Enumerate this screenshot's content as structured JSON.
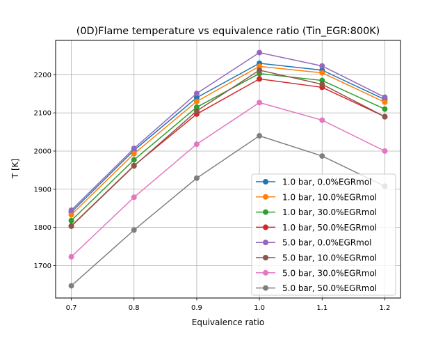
{
  "chart_data": {
    "type": "line",
    "title": "(0D)Flame temperature vs equivalence ratio (Tin_EGR:800K)",
    "xlabel": "Equivalence ratio",
    "ylabel": "T [K]",
    "xlim": [
      0.675,
      1.225
    ],
    "ylim": [
      1615,
      2290
    ],
    "x": [
      0.7,
      0.8,
      0.9,
      1.0,
      1.1,
      1.2
    ],
    "x_ticks": [
      0.7,
      0.8,
      0.9,
      1.0,
      1.1,
      1.2
    ],
    "x_tick_labels": [
      "0.7",
      "0.8",
      "0.9",
      "1.0",
      "1.1",
      "1.2"
    ],
    "y_ticks": [
      1700,
      1800,
      1900,
      2000,
      2100,
      2200
    ],
    "y_tick_labels": [
      "1700",
      "1800",
      "1900",
      "2000",
      "2100",
      "2200"
    ],
    "grid": true,
    "legend_position": "lower-right",
    "series": [
      {
        "name": "1.0 bar, 0.0%EGRmol",
        "color": "#1f77b4",
        "values": [
          1840,
          2002,
          2140,
          2230,
          2212,
          2135
        ]
      },
      {
        "name": "1.0 bar, 10.0%EGRmol",
        "color": "#ff7f0e",
        "values": [
          1833,
          1993,
          2130,
          2222,
          2205,
          2128
        ]
      },
      {
        "name": "1.0 bar, 30.0%EGRmol",
        "color": "#2ca02c",
        "values": [
          1818,
          1977,
          2115,
          2203,
          2185,
          2110
        ]
      },
      {
        "name": "1.0 bar, 50.0%EGRmol",
        "color": "#d62728",
        "values": [
          1804,
          1962,
          2097,
          2189,
          2167,
          2090
        ]
      },
      {
        "name": "5.0 bar, 0.0%EGRmol",
        "color": "#9467bd",
        "values": [
          1845,
          2007,
          2151,
          2258,
          2223,
          2141
        ]
      },
      {
        "name": "5.0 bar, 10.0%EGRmol",
        "color": "#8c564b",
        "values": [
          1803,
          1961,
          2105,
          2212,
          2175,
          2090
        ]
      },
      {
        "name": "5.0 bar, 30.0%EGRmol",
        "color": "#e377c2",
        "values": [
          1723,
          1879,
          2018,
          2127,
          2081,
          2000
        ]
      },
      {
        "name": "5.0 bar, 50.0%EGRmol",
        "color": "#7f7f7f",
        "values": [
          1647,
          1793,
          1929,
          2040,
          1987,
          1908
        ]
      }
    ]
  }
}
